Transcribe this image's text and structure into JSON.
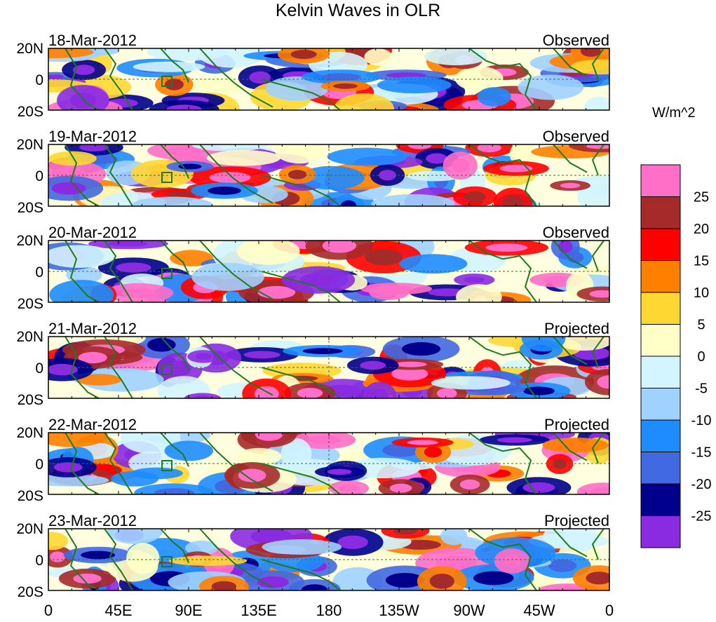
{
  "chart_data": {
    "type": "heatmap",
    "title": "Kelvin Waves in OLR",
    "colorbar": {
      "units": "W/m^2",
      "labels": [
        "25",
        "20",
        "15",
        "10",
        "5",
        "0",
        "-5",
        "-10",
        "-15",
        "-20",
        "-25"
      ],
      "colors": [
        "#ff6ec7",
        "#a52a2a",
        "#ff0000",
        "#ff7f00",
        "#ffd733",
        "#ffffc8",
        "#d2f5ff",
        "#a0d2ff",
        "#1e8cff",
        "#4169e1",
        "#00008c",
        "#8a2be2"
      ]
    },
    "x_ticks": [
      "0",
      "45E",
      "90E",
      "135E",
      "180",
      "135W",
      "90W",
      "45W",
      "0"
    ],
    "y_ticks": [
      "20N",
      "0",
      "20S"
    ],
    "xlim": [
      0,
      360
    ],
    "ylim": [
      -20,
      20
    ],
    "panels": [
      {
        "date": "18-Mar-2012",
        "status": "Observed"
      },
      {
        "date": "19-Mar-2012",
        "status": "Observed"
      },
      {
        "date": "20-Mar-2012",
        "status": "Observed"
      },
      {
        "date": "21-Mar-2012",
        "status": "Projected"
      },
      {
        "date": "22-Mar-2012",
        "status": "Projected"
      },
      {
        "date": "23-Mar-2012",
        "status": "Projected"
      }
    ]
  }
}
